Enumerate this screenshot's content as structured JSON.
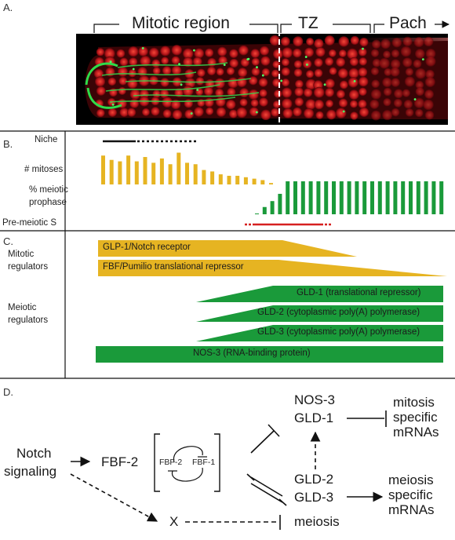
{
  "panel_a": {
    "letter": "A.",
    "regions": {
      "mitotic": "Mitotic region",
      "tz": "TZ",
      "pach": "Pach"
    }
  },
  "panel_b": {
    "letter": "B.",
    "row_labels": {
      "niche": "Niche",
      "mitoses": "# mitoses",
      "meiotic_line1": "% meiotic",
      "meiotic_line2": "prophase",
      "premeiotic": "Pre-meiotic S"
    },
    "colors": {
      "mitoses": "#e6b422",
      "meiotic": "#1a9a3a",
      "premeiotic": "#d62020",
      "niche": "#111111"
    },
    "mitoses_counts": [
      40,
      34,
      32,
      40,
      32,
      38,
      30,
      36,
      28,
      44,
      30,
      28,
      20,
      18,
      14,
      12,
      12,
      10,
      8,
      6,
      2
    ],
    "meiotic_percent": [
      2,
      22,
      40,
      62,
      100,
      100,
      100,
      100,
      100,
      100,
      100,
      100,
      100,
      100,
      100,
      100,
      100,
      100,
      100,
      100,
      100,
      100,
      100,
      100,
      100
    ]
  },
  "panel_c": {
    "letter": "C.",
    "group_labels": {
      "mitotic_1": "Mitotic",
      "mitotic_2": "regulators",
      "meiotic_1": "Meiotic",
      "meiotic_2": "regulators"
    },
    "colors": {
      "mitotic": "#e6b422",
      "meiotic": "#1a9a3a"
    },
    "bars": {
      "glp1": "GLP-1/Notch receptor",
      "fbf": "FBF/Pumilio translational repressor",
      "gld1": "GLD-1 (translational repressor)",
      "gld2": "GLD-2 (cytoplasmic poly(A) polymerase)",
      "gld3": "GLD-3 (cytoplasmic poly(A) polymerase)",
      "nos3": "NOS-3 (RNA-binding protein)"
    }
  },
  "panel_d": {
    "letter": "D.",
    "notch_1": "Notch",
    "notch_2": "signaling",
    "fbf2": "FBF-2",
    "loop_fbf2": "FBF-2",
    "loop_fbf1": "FBF-1",
    "nos3": "NOS-3",
    "gld1": "GLD-1",
    "gld2": "GLD-2",
    "gld3": "GLD-3",
    "x": "X",
    "meiosis": "meiosis",
    "mitosis_1": "mitosis",
    "mitosis_2": "specific",
    "mitosis_3": "mRNAs",
    "meiosis_t1": "meiosis",
    "meiosis_t2": "specific",
    "meiosis_t3": "mRNAs"
  }
}
